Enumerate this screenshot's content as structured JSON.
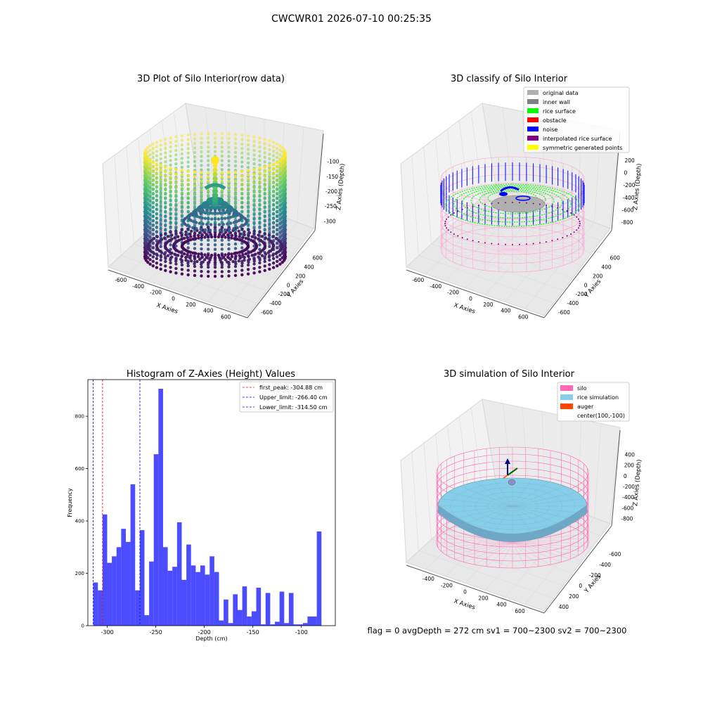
{
  "figure": {
    "suptitle": "CWCWR01 2026-07-10 00:25:35",
    "footer": "flag = 0     avgDepth = 272 cm  sv1 = 700~2300  sv2 = 700~2300"
  },
  "panel_raw": {
    "title": "3D Plot of Silo Interior(row data)",
    "xlabel": "X Axies",
    "ylabel": "Y Axies",
    "zlabel": "Z Axies (Depth)",
    "xticks": [
      "-600",
      "-400",
      "-200",
      "0",
      "200",
      "400",
      "600"
    ],
    "yticks": [
      "-600",
      "-400",
      "-200",
      "0",
      "200",
      "400",
      "600"
    ],
    "zticks": [
      "-100",
      "-150",
      "-200",
      "-250",
      "-300"
    ],
    "colormap": "viridis"
  },
  "panel_classify": {
    "title": "3D classify of Silo Interior",
    "xlabel": "X Axies",
    "ylabel": "Y Axies",
    "zlabel": "Z Axies (Depth)",
    "xticks": [
      "-600",
      "-400",
      "-200",
      "0",
      "200",
      "400",
      "600"
    ],
    "yticks": [
      "-600",
      "-400",
      "-200",
      "0",
      "200",
      "400",
      "600"
    ],
    "zticks": [
      "200",
      "0",
      "-200",
      "-400",
      "-600",
      "-800"
    ],
    "legend": [
      {
        "label": "original data",
        "color": "#b0b0b0"
      },
      {
        "label": "inner wall",
        "color": "#808080"
      },
      {
        "label": "rice surface",
        "color": "#00ff00"
      },
      {
        "label": "obstacle",
        "color": "#ff0000"
      },
      {
        "label": "noise",
        "color": "#0000ff"
      },
      {
        "label": "interpolated rice surface",
        "color": "#800080"
      },
      {
        "label": "symmetric generated points",
        "color": "#ffff00"
      }
    ]
  },
  "panel_sim": {
    "title": "3D simulation of Silo Interior",
    "xlabel": "X Axies",
    "ylabel": "Y Axies",
    "zlabel": "Z Axies (Depth)",
    "xticks": [
      "-400",
      "-200",
      "0",
      "200",
      "400",
      "600"
    ],
    "yticks": [
      "400",
      "200",
      "0",
      "-200",
      "-400",
      "-600"
    ],
    "zticks": [
      "400",
      "200",
      "0",
      "-200",
      "-400",
      "-600",
      "-800"
    ],
    "legend": [
      {
        "label": "silo",
        "color": "#ff69b4"
      },
      {
        "label": "rice simulation",
        "color": "#87ceeb"
      },
      {
        "label": "auger",
        "color": "#ff4500"
      },
      {
        "label": "center(100,-100)",
        "color": "#ffffff"
      }
    ]
  },
  "chart_data": {
    "type": "bar",
    "title": "Histogram of Z-Axies (Height) Values",
    "xlabel": "Depth (cm)",
    "ylabel": "Frequency",
    "xlim": [
      -320,
      -65
    ],
    "ylim": [
      0,
      940
    ],
    "xticks": [
      -300,
      -250,
      -200,
      -150,
      -100
    ],
    "yticks": [
      0,
      200,
      400,
      600,
      800
    ],
    "bar_color": "#0000ff",
    "bin_start": -314.5,
    "bin_width": 4.8,
    "values": [
      165,
      135,
      425,
      240,
      265,
      300,
      370,
      320,
      540,
      135,
      365,
      40,
      245,
      655,
      905,
      300,
      210,
      225,
      395,
      175,
      310,
      230,
      205,
      230,
      195,
      265,
      205,
      20,
      100,
      10,
      120,
      60,
      150,
      35,
      55,
      145,
      5,
      125,
      5,
      15,
      130,
      10,
      125,
      5,
      5,
      10,
      35,
      35,
      360
    ],
    "vlines": [
      {
        "label": "first_peak: -304.88 cm",
        "x": -304.88,
        "color": "#ff0000"
      },
      {
        "label": "Upper_limit: -266.40 cm",
        "x": -266.4,
        "color": "#0000ff"
      },
      {
        "label": "Lower_limit: -314.50 cm",
        "x": -314.5,
        "color": "#0000ff"
      }
    ],
    "legend_position": "top-right"
  }
}
